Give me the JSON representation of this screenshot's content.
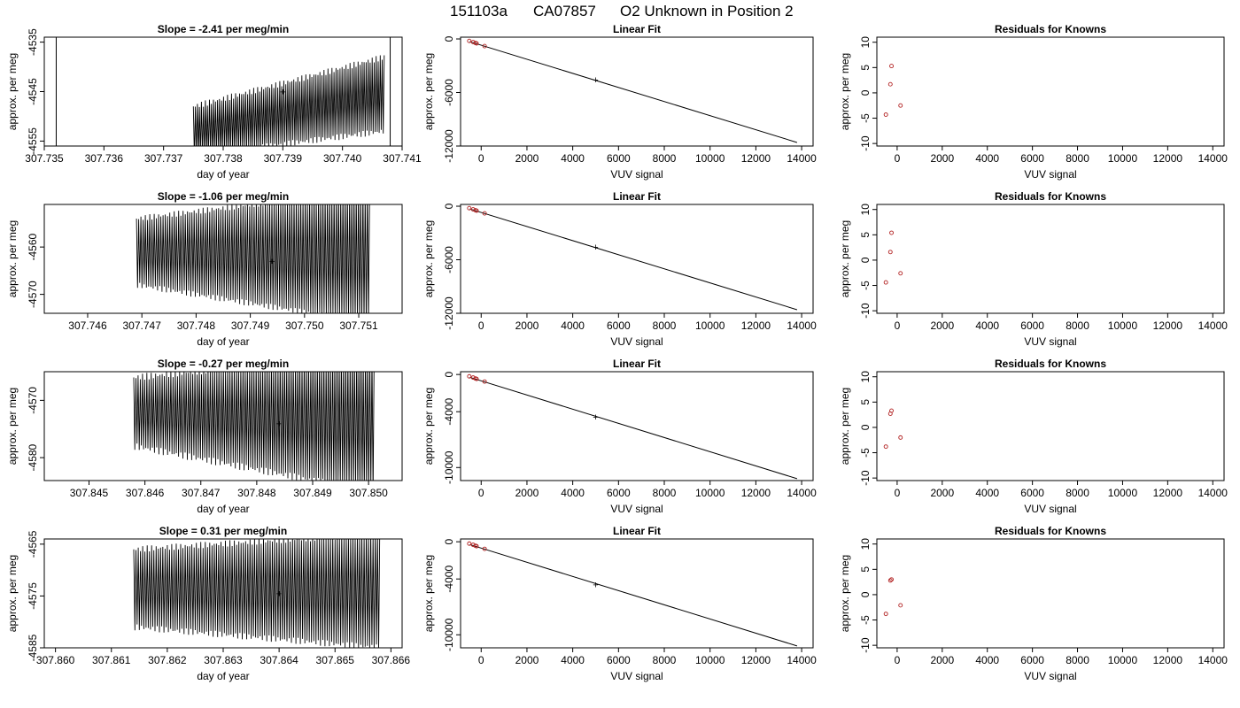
{
  "figure": {
    "title_id": "151103a",
    "title_tank": "CA07857",
    "title_desc": "O2 Unknown in Position  2"
  },
  "colors": {
    "trace": "#000000",
    "unknown": "#00cc00",
    "known": "#b22222",
    "fit_line": "#000000"
  },
  "chart_data": [
    {
      "type": "line",
      "row": 0,
      "col": 0,
      "title": "Slope =  -2.41  per meg/min",
      "xlabel": "day of year",
      "ylabel": "approx. per meg",
      "xlim": [
        307.735,
        307.741
      ],
      "ylim": [
        -4556,
        -4534
      ],
      "xticks": [
        "307.735",
        "307.736",
        "307.737",
        "307.738",
        "307.739",
        "307.740",
        "307.741"
      ],
      "yticks": [
        "-4535",
        "-4545",
        "-4555"
      ],
      "series": [
        {
          "x_start": 307.7375,
          "x_end": 307.7407,
          "cycles": 95,
          "low_start": -4558,
          "low_end": -4553,
          "high_start": -4548,
          "high_end": -4538
        }
      ],
      "vlines": [
        307.7352,
        307.7408
      ],
      "unknown_point": {
        "x": 307.739,
        "y": -4545
      }
    },
    {
      "type": "scatter",
      "row": 0,
      "col": 1,
      "title": "Linear Fit",
      "xlabel": "VUV signal",
      "ylabel": "approx. per meg",
      "xlim": [
        -900,
        14500
      ],
      "ylim": [
        -12000,
        200
      ],
      "xticks": [
        "0",
        "2000",
        "4000",
        "6000",
        "8000",
        "10000",
        "12000",
        "14000"
      ],
      "yticks": [
        "0",
        "-6000",
        "-12000"
      ],
      "fit_line": {
        "x": [
          -500,
          13800
        ],
        "y": [
          -300,
          -11600
        ]
      },
      "known_points": {
        "x": [
          -520,
          -350,
          -250,
          -200,
          150
        ],
        "y": [
          -220,
          -350,
          -450,
          -500,
          -800
        ]
      },
      "unknown_point": {
        "x": 5000,
        "y": -4545
      }
    },
    {
      "type": "scatter",
      "row": 0,
      "col": 2,
      "title": "Residuals for Knowns",
      "xlabel": "VUV signal",
      "ylabel": "approx. per meg",
      "xlim": [
        -900,
        14500
      ],
      "ylim": [
        -10.5,
        11
      ],
      "xticks": [
        "0",
        "2000",
        "4000",
        "6000",
        "8000",
        "10000",
        "12000",
        "14000"
      ],
      "yticks": [
        "-10",
        "-5",
        "0",
        "5",
        "10"
      ],
      "known_points": {
        "x": [
          -500,
          -300,
          -250,
          150
        ],
        "y": [
          -4.3,
          1.7,
          5.3,
          -2.5
        ]
      }
    },
    {
      "type": "line",
      "row": 1,
      "col": 0,
      "title": "Slope =  -1.06  per meg/min",
      "xlabel": "day of year",
      "ylabel": "approx. per meg",
      "xlim": [
        307.7452,
        307.7518
      ],
      "ylim": [
        -4574,
        -4551
      ],
      "xticks": [
        "307.746",
        "307.747",
        "307.748",
        "307.749",
        "307.750",
        "307.751"
      ],
      "yticks": [
        "-4560",
        "-4570"
      ],
      "series": [
        {
          "x_start": 307.7469,
          "x_end": 307.7512,
          "cycles": 105,
          "low_start": -4568,
          "low_end": -4576,
          "high_start": -4554,
          "high_end": -4548
        }
      ],
      "vlines": [],
      "unknown_point": {
        "x": 307.7494,
        "y": -4563
      }
    },
    {
      "type": "scatter",
      "row": 1,
      "col": 1,
      "title": "Linear Fit",
      "xlabel": "VUV signal",
      "ylabel": "approx. per meg",
      "xlim": [
        -900,
        14500
      ],
      "ylim": [
        -12000,
        200
      ],
      "xticks": [
        "0",
        "2000",
        "4000",
        "6000",
        "8000",
        "10000",
        "12000",
        "14000"
      ],
      "yticks": [
        "0",
        "-6000",
        "-12000"
      ],
      "fit_line": {
        "x": [
          -500,
          13800
        ],
        "y": [
          -300,
          -11600
        ]
      },
      "known_points": {
        "x": [
          -520,
          -350,
          -250,
          -200,
          150
        ],
        "y": [
          -220,
          -350,
          -450,
          -500,
          -800
        ]
      },
      "unknown_point": {
        "x": 5000,
        "y": -4563
      }
    },
    {
      "type": "scatter",
      "row": 1,
      "col": 2,
      "title": "Residuals for Knowns",
      "xlabel": "VUV signal",
      "ylabel": "approx. per meg",
      "xlim": [
        -900,
        14500
      ],
      "ylim": [
        -10.5,
        11
      ],
      "xticks": [
        "0",
        "2000",
        "4000",
        "6000",
        "8000",
        "10000",
        "12000",
        "14000"
      ],
      "yticks": [
        "-10",
        "-5",
        "0",
        "5",
        "10"
      ],
      "known_points": {
        "x": [
          -500,
          -300,
          -250,
          150
        ],
        "y": [
          -4.4,
          1.6,
          5.4,
          -2.6
        ]
      }
    },
    {
      "type": "line",
      "row": 2,
      "col": 0,
      "title": "Slope =  -0.27  per meg/min",
      "xlabel": "day of year",
      "ylabel": "approx. per meg",
      "xlim": [
        307.8442,
        307.8506
      ],
      "ylim": [
        -4584,
        -4565
      ],
      "xticks": [
        "307.845",
        "307.846",
        "307.847",
        "307.848",
        "307.849",
        "307.850"
      ],
      "yticks": [
        "-4570",
        "-4580"
      ],
      "series": [
        {
          "x_start": 307.8458,
          "x_end": 307.8501,
          "cycles": 110,
          "low_start": -4578,
          "low_end": -4586,
          "high_start": -4566,
          "high_end": -4562
        }
      ],
      "vlines": [],
      "unknown_point": {
        "x": 307.8484,
        "y": -4574
      }
    },
    {
      "type": "scatter",
      "row": 2,
      "col": 1,
      "title": "Linear Fit",
      "xlabel": "VUV signal",
      "ylabel": "approx. per meg",
      "xlim": [
        -900,
        14500
      ],
      "ylim": [
        -11400,
        300
      ],
      "xticks": [
        "0",
        "2000",
        "4000",
        "6000",
        "8000",
        "10000",
        "12000",
        "14000"
      ],
      "yticks": [
        "0",
        "-4000",
        "-10000"
      ],
      "fit_line": {
        "x": [
          -500,
          13800
        ],
        "y": [
          -300,
          -11200
        ]
      },
      "known_points": {
        "x": [
          -520,
          -350,
          -250,
          -200,
          150
        ],
        "y": [
          -200,
          -330,
          -430,
          -480,
          -760
        ]
      },
      "unknown_point": {
        "x": 5000,
        "y": -4574
      }
    },
    {
      "type": "scatter",
      "row": 2,
      "col": 2,
      "title": "Residuals for Knowns",
      "xlabel": "VUV signal",
      "ylabel": "approx. per meg",
      "xlim": [
        -900,
        14500
      ],
      "ylim": [
        -10.5,
        11
      ],
      "xticks": [
        "0",
        "2000",
        "4000",
        "6000",
        "8000",
        "10000",
        "12000",
        "14000"
      ],
      "yticks": [
        "-10",
        "-5",
        "0",
        "5",
        "10"
      ],
      "known_points": {
        "x": [
          -500,
          -300,
          -250,
          150
        ],
        "y": [
          -3.8,
          2.7,
          3.3,
          -2.0
        ]
      }
    },
    {
      "type": "line",
      "row": 3,
      "col": 0,
      "title": "Slope =  0.31  per meg/min",
      "xlabel": "day of year",
      "ylabel": "approx. per meg",
      "xlim": [
        307.8598,
        307.8662
      ],
      "ylim": [
        -4585,
        -4564
      ],
      "xticks": [
        "307.860",
        "307.861",
        "307.862",
        "307.863",
        "307.864",
        "307.865",
        "307.866"
      ],
      "yticks": [
        "-4565",
        "-4575",
        "-4585"
      ],
      "series": [
        {
          "x_start": 307.8614,
          "x_end": 307.8658,
          "cycles": 110,
          "low_start": -4581,
          "low_end": -4585,
          "high_start": -4566,
          "high_end": -4563
        }
      ],
      "vlines": [],
      "unknown_point": {
        "x": 307.864,
        "y": -4574.5
      }
    },
    {
      "type": "scatter",
      "row": 3,
      "col": 1,
      "title": "Linear Fit",
      "xlabel": "VUV signal",
      "ylabel": "approx. per meg",
      "xlim": [
        -900,
        14500
      ],
      "ylim": [
        -11400,
        300
      ],
      "xticks": [
        "0",
        "2000",
        "4000",
        "6000",
        "8000",
        "10000",
        "12000",
        "14000"
      ],
      "yticks": [
        "0",
        "-4000",
        "-10000"
      ],
      "fit_line": {
        "x": [
          -500,
          13800
        ],
        "y": [
          -300,
          -11200
        ]
      },
      "known_points": {
        "x": [
          -520,
          -350,
          -250,
          -200,
          150
        ],
        "y": [
          -200,
          -330,
          -430,
          -480,
          -760
        ]
      },
      "unknown_point": {
        "x": 5000,
        "y": -4575
      }
    },
    {
      "type": "scatter",
      "row": 3,
      "col": 2,
      "title": "Residuals for Knowns",
      "xlabel": "VUV signal",
      "ylabel": "approx. per meg",
      "xlim": [
        -900,
        14500
      ],
      "ylim": [
        -10.5,
        11
      ],
      "xticks": [
        "0",
        "2000",
        "4000",
        "6000",
        "8000",
        "10000",
        "12000",
        "14000"
      ],
      "yticks": [
        "-10",
        "-5",
        "0",
        "5",
        "10"
      ],
      "known_points": {
        "x": [
          -500,
          -300,
          -250,
          150
        ],
        "y": [
          -3.8,
          2.8,
          3.0,
          -2.1
        ]
      }
    }
  ]
}
